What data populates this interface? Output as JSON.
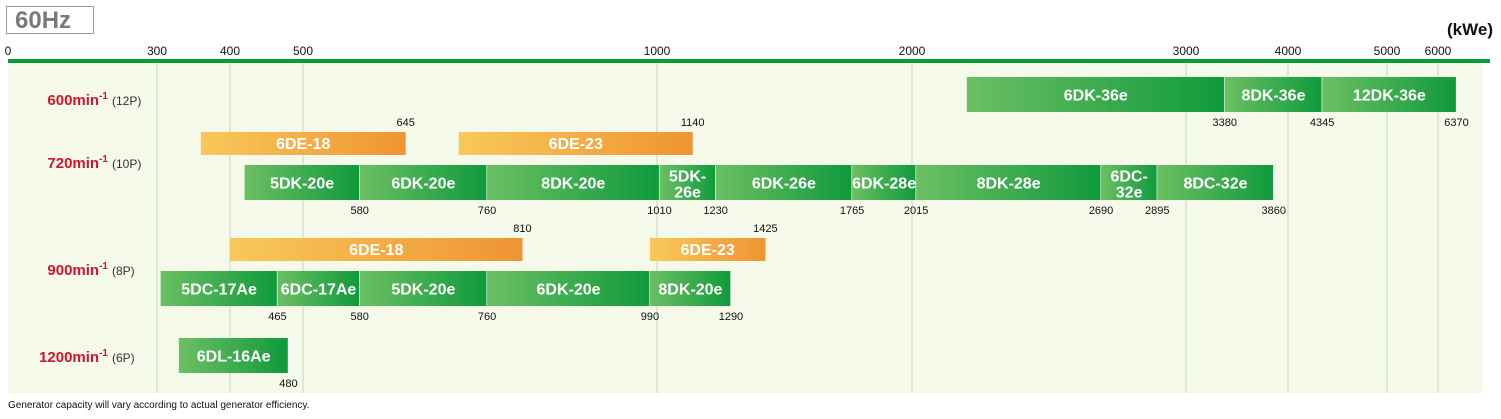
{
  "header": {
    "title": "60Hz",
    "unit": "(kWe)"
  },
  "footnote": "Generator capacity will vary according to actual generator efficiency.",
  "chart_data": {
    "type": "bar",
    "axis_ticks": [
      {
        "value": 0,
        "label": "0"
      },
      {
        "value": 300,
        "label": "300"
      },
      {
        "value": 400,
        "label": "400"
      },
      {
        "value": 500,
        "label": "500"
      },
      {
        "value": 1000,
        "label": "1000"
      },
      {
        "value": 2000,
        "label": "2000"
      },
      {
        "value": 3000,
        "label": "3000"
      },
      {
        "value": 4000,
        "label": "4000"
      },
      {
        "value": 5000,
        "label": "5000"
      },
      {
        "value": 6000,
        "label": "6000"
      }
    ],
    "rows": [
      {
        "speed": "600min",
        "sup": "-1",
        "poles": "(12P)",
        "green": [
          {
            "label": "6DK-36e",
            "from": 2200,
            "to": 3380,
            "end_label": "3380"
          },
          {
            "label": "8DK-36e",
            "from": 3380,
            "to": 4345,
            "end_label": "4345"
          },
          {
            "label": "12DK-36e",
            "from": 4345,
            "to": 6370,
            "end_label": "6370"
          }
        ],
        "orange": []
      },
      {
        "speed": "720min",
        "sup": "-1",
        "poles": "(10P)",
        "orange": [
          {
            "label": "6DE-18",
            "from": 360,
            "to": 645,
            "end_label": "645"
          },
          {
            "label": "6DE-23",
            "from": 720,
            "to": 1140,
            "end_label": "1140"
          }
        ],
        "green": [
          {
            "label": "5DK-20e",
            "from": 420,
            "to": 580,
            "end_label": "580"
          },
          {
            "label": "6DK-20e",
            "from": 580,
            "to": 760,
            "end_label": "760"
          },
          {
            "label": "8DK-20e",
            "from": 760,
            "to": 1010,
            "end_label": "1010"
          },
          {
            "label": "5DK-26e",
            "from": 1010,
            "to": 1230,
            "end_label": "1230"
          },
          {
            "label": "6DK-26e",
            "from": 1230,
            "to": 1765,
            "end_label": "1765"
          },
          {
            "label": "6DK-28e",
            "from": 1765,
            "to": 2015,
            "end_label": "2015"
          },
          {
            "label": "8DK-28e",
            "from": 2015,
            "to": 2690,
            "end_label": "2690"
          },
          {
            "label": "6DC-32e",
            "from": 2690,
            "to": 2895,
            "end_label": "2895"
          },
          {
            "label": "8DC-32e",
            "from": 2895,
            "to": 3860,
            "end_label": "3860"
          }
        ]
      },
      {
        "speed": "900min",
        "sup": "-1",
        "poles": "(8P)",
        "orange": [
          {
            "label": "6DE-18",
            "from": 400,
            "to": 810,
            "end_label": "810"
          },
          {
            "label": "6DE-23",
            "from": 990,
            "to": 1425,
            "end_label": "1425"
          }
        ],
        "green": [
          {
            "label": "5DC-17Ae",
            "from": 305,
            "to": 465,
            "end_label": "465"
          },
          {
            "label": "6DC-17Ae",
            "from": 465,
            "to": 580,
            "end_label": "580"
          },
          {
            "label": "5DK-20e",
            "from": 580,
            "to": 760,
            "end_label": "760"
          },
          {
            "label": "6DK-20e",
            "from": 760,
            "to": 990,
            "end_label": "990"
          },
          {
            "label": "8DK-20e",
            "from": 990,
            "to": 1290,
            "end_label": "1290"
          }
        ]
      },
      {
        "speed": "1200min",
        "sup": "-1",
        "poles": "(6P)",
        "orange": [],
        "green": [
          {
            "label": "6DL-16Ae",
            "from": 330,
            "to": 480,
            "end_label": "480"
          }
        ]
      }
    ]
  }
}
